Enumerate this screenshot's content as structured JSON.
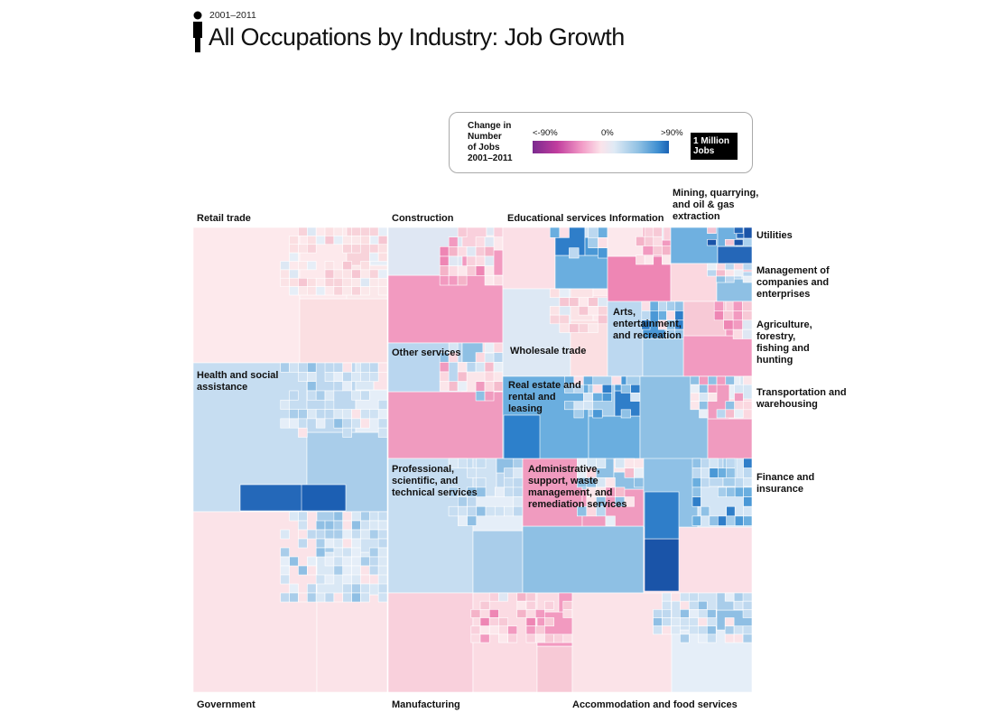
{
  "header": {
    "subtitle": "2001–2011",
    "title": "All Occupations by Industry: Job Growth"
  },
  "legend": {
    "title_lines": [
      "Change in",
      "Number",
      "of Jobs",
      "2001–2011"
    ],
    "min_label": "<-90%",
    "zero_label": "0%",
    "max_label": ">90%",
    "size_label_lines": [
      "1 Million",
      "Jobs"
    ],
    "colors": {
      "low": "#7b2a8f",
      "mid": "#fbe3ea",
      "high": "#1a62b4"
    }
  },
  "chart_data": {
    "type": "heatmap",
    "subtype": "treemap",
    "title": "All Occupations by Industry: Job Growth",
    "subtitle": "2001–2011",
    "color_scale": {
      "label": "Change in Number of Jobs 2001–2011",
      "min": "<-90%",
      "mid": "0%",
      "max": ">90%"
    },
    "size_unit": "1 Million Jobs",
    "industries": [
      {
        "name": "Retail trade",
        "trend": "mixed, mostly slight decline"
      },
      {
        "name": "Construction",
        "trend": "mostly decline"
      },
      {
        "name": "Educational services",
        "trend": "growth"
      },
      {
        "name": "Information",
        "trend": "decline"
      },
      {
        "name": "Mining, quarrying, and oil & gas extraction",
        "trend": "strong growth"
      },
      {
        "name": "Utilities",
        "trend": "mixed"
      },
      {
        "name": "Management of companies and enterprises",
        "trend": "growth"
      },
      {
        "name": "Agriculture, forestry, fishing and hunting",
        "trend": "decline"
      },
      {
        "name": "Health and social assistance",
        "trend": "growth"
      },
      {
        "name": "Other services",
        "trend": "mixed"
      },
      {
        "name": "Wholesale trade",
        "trend": "slight decline"
      },
      {
        "name": "Arts, entertainment, and recreation",
        "trend": "growth"
      },
      {
        "name": "Real estate and rental and leasing",
        "trend": "growth"
      },
      {
        "name": "Transportation and warehousing",
        "trend": "mixed"
      },
      {
        "name": "Professional, scientific, and technical services",
        "trend": "growth"
      },
      {
        "name": "Administrative, support, waste management, and remediation services",
        "trend": "mixed"
      },
      {
        "name": "Finance and insurance",
        "trend": "growth"
      },
      {
        "name": "Government",
        "trend": "slight growth"
      },
      {
        "name": "Manufacturing",
        "trend": "strong decline"
      },
      {
        "name": "Accommodation and food services",
        "trend": "growth"
      }
    ]
  }
}
